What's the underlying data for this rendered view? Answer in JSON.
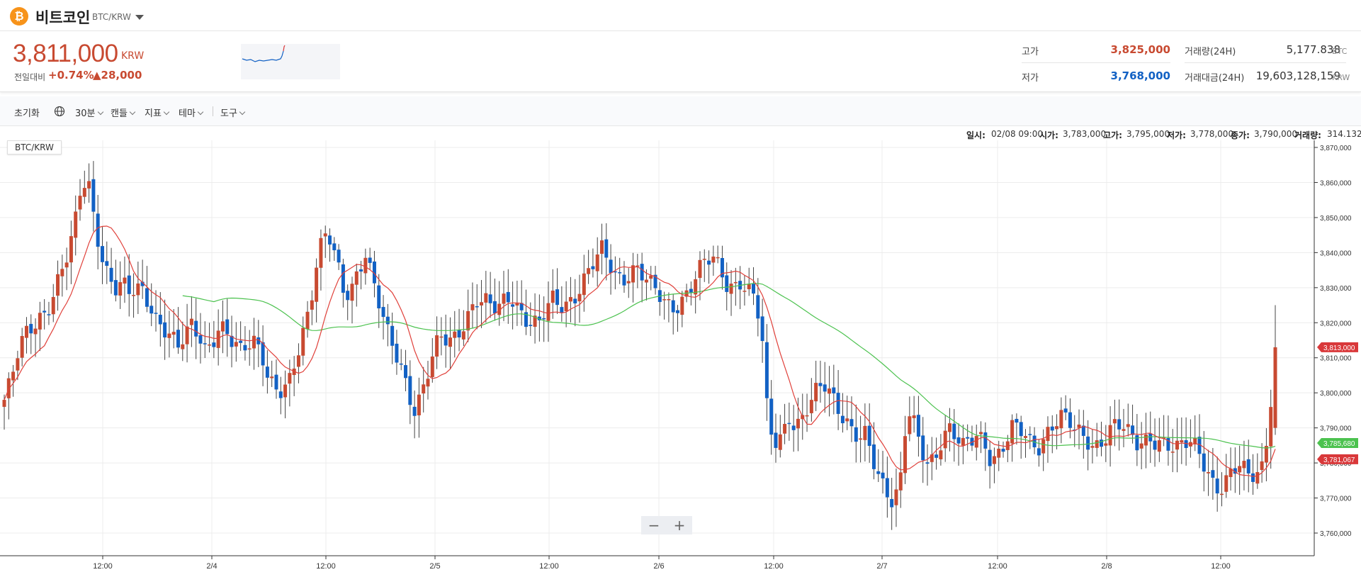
{
  "header": {
    "coin_logo": "₿",
    "coin_name": "비트코인",
    "pair": "BTC/KRW",
    "pair_dropdown_icon": "chevron-down-icon"
  },
  "ticker": {
    "price": "3,811,000",
    "unit": "KRW",
    "change_label": "전일대비",
    "change_pct": "+0.74%",
    "change_abs": "▲28,000",
    "high_label": "고가",
    "high": "3,825,000",
    "low_label": "저가",
    "low": "3,768,000",
    "volume_label": "거래량(24H)",
    "volume": "5,177.838",
    "volume_unit": "BTC",
    "amount_label": "거래대금(24H)",
    "amount": "19,603,128,159",
    "amount_unit": "KRW"
  },
  "toolbar": {
    "reset": "초기화",
    "interval": "30분",
    "candle": "캔들",
    "indicator": "지표",
    "theme": "테마",
    "tools": "도구"
  },
  "ohlc": {
    "date_label": "일시:",
    "date": "02/08 09:00",
    "open_label": "시가:",
    "open": "3,783,000",
    "high_label": "고가:",
    "high": "3,795,000",
    "low_label": "저가:",
    "low": "3,778,000",
    "close_label": "종가:",
    "close": "3,790,000",
    "volume_label": "거래량:",
    "volume": "314.132"
  },
  "chart_pair_tag": "BTC/KRW",
  "zoom": {
    "minus": "−",
    "plus": "+"
  },
  "colors": {
    "up": "#c84a31",
    "down": "#1261c4",
    "ma_short": "#e0403a",
    "ma_long": "#4cc24f",
    "grid": "#ececec"
  },
  "chart_data": {
    "type": "candlestick",
    "ylim": [
      3756000,
      3871000
    ],
    "y_ticks": [
      3760000,
      3770000,
      3780000,
      3790000,
      3800000,
      3810000,
      3820000,
      3830000,
      3840000,
      3850000,
      3860000,
      3870000
    ],
    "y_tick_labels": [
      "3,760,000",
      "3,770,000",
      "3,780,000",
      "3,790,000",
      "3,800,000",
      "3,810,000",
      "3,820,000",
      "3,830,000",
      "3,840,000",
      "3,850,000",
      "3,860,000",
      "3,870,000"
    ],
    "x_tick_labels": [
      "12:00",
      "2/4",
      "12:00",
      "2/5",
      "12:00",
      "2/6",
      "12:00",
      "2/7",
      "12:00",
      "2/8",
      "12:00"
    ],
    "price_tags": [
      {
        "value": 3813000,
        "label": "3,813,000",
        "color": "#d9383a"
      },
      {
        "value": 3785680,
        "label": "3,785,680",
        "color": "#4cc24f"
      },
      {
        "value": 3781067,
        "label": "3,781,067",
        "color": "#d9383a"
      }
    ],
    "close_path": [
      3798000,
      3803000,
      3811000,
      3816000,
      3819000,
      3822000,
      3824000,
      3828000,
      3833000,
      3838000,
      3845000,
      3858000,
      3862000,
      3850000,
      3840000,
      3833000,
      3829000,
      3830000,
      3828000,
      3830000,
      3830000,
      3826000,
      3821000,
      3818000,
      3815000,
      3812000,
      3816000,
      3820000,
      3818000,
      3813000,
      3815000,
      3818000,
      3816000,
      3813000,
      3812000,
      3815000,
      3816000,
      3813000,
      3804000,
      3800000,
      3799000,
      3802000,
      3810000,
      3818000,
      3826000,
      3838000,
      3845000,
      3843000,
      3835000,
      3827000,
      3830000,
      3836000,
      3841000,
      3833000,
      3825000,
      3817000,
      3812000,
      3808000,
      3802000,
      3796000,
      3800000,
      3806000,
      3812000,
      3815000,
      3814000,
      3816000,
      3820000,
      3824000,
      3827000,
      3826000,
      3824000,
      3823000,
      3826000,
      3828000,
      3825000,
      3822000,
      3820000,
      3819000,
      3823000,
      3826000,
      3825000,
      3826000,
      3828000,
      3831000,
      3834000,
      3837000,
      3840000,
      3837000,
      3834000,
      3833000,
      3835000,
      3836000,
      3833000,
      3830000,
      3828000,
      3826000,
      3825000,
      3826000,
      3828000,
      3831000,
      3834000,
      3837000,
      3838000,
      3836000,
      3832000,
      3831000,
      3832000,
      3829000,
      3826000,
      3818000,
      3790000,
      3787000,
      3789000,
      3794000,
      3790000,
      3792000,
      3796000,
      3800000,
      3803000,
      3801000,
      3797000,
      3793000,
      3789000,
      3786000,
      3787000,
      3781000,
      3776000,
      3773000,
      3770000,
      3775000,
      3795000,
      3790000,
      3783000,
      3779000,
      3782000,
      3788000,
      3791000,
      3788000,
      3784000,
      3785000,
      3787000,
      3786000,
      3782000,
      3783000,
      3786000,
      3790000,
      3789000,
      3787000,
      3784000,
      3785000,
      3789000,
      3792000,
      3794000,
      3792000,
      3789000,
      3787000,
      3786000,
      3785000,
      3787000,
      3790000,
      3791000,
      3790000,
      3787000,
      3785000,
      3786000,
      3788000,
      3787000,
      3786000,
      3784000,
      3783000,
      3785000,
      3786000,
      3784000,
      3780000,
      3775000,
      3772000,
      3774000,
      3777000,
      3779000,
      3777000,
      3778000,
      3779000,
      3790000,
      3813000
    ],
    "series": [
      {
        "name": "MA short"
      },
      {
        "name": "MA long"
      }
    ]
  }
}
